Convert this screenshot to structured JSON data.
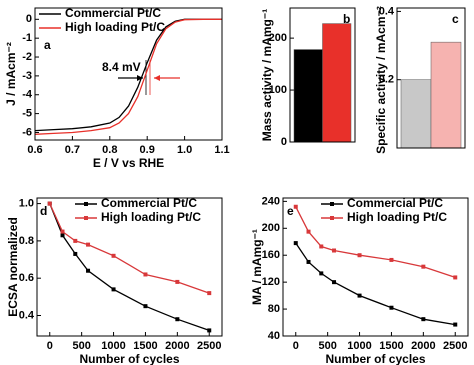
{
  "chart_data": [
    {
      "type": "line",
      "panel_label": "a",
      "annotation": "8.4 mV",
      "xlabel": "E / V vs RHE",
      "ylabel": "J / mAcm⁻²",
      "x": [
        0.6,
        0.65,
        0.7,
        0.75,
        0.8,
        0.825,
        0.85,
        0.875,
        0.9,
        0.925,
        0.95,
        0.975,
        1.0,
        1.05,
        1.1
      ],
      "series": [
        {
          "name": "Commercial Pt/C",
          "color": "#000000",
          "values": [
            -5.9,
            -5.85,
            -5.8,
            -5.7,
            -5.5,
            -5.2,
            -4.6,
            -3.6,
            -2.3,
            -1.1,
            -0.4,
            -0.1,
            0,
            0,
            0
          ]
        },
        {
          "name": "High loading Pt/C",
          "color": "#e8302a",
          "values": [
            -6.1,
            -6.05,
            -6.0,
            -5.9,
            -5.75,
            -5.5,
            -5.0,
            -4.1,
            -2.7,
            -1.3,
            -0.5,
            -0.15,
            -0.02,
            0,
            0
          ]
        }
      ],
      "xlim": [
        0.6,
        1.1
      ],
      "xticks": [
        0.6,
        0.7,
        0.8,
        0.9,
        {
          "value": 1,
          "label": "1.0"
        },
        1.1
      ],
      "ylim": [
        -6.4,
        0.6
      ],
      "yticks": [
        0,
        -1,
        -2,
        -3,
        -4,
        -5,
        -6
      ],
      "legend": "upper left",
      "marker": false
    },
    {
      "type": "bar",
      "panel_label": "b",
      "ylabel": "Mass activity / mAmg⁻¹",
      "categories": [
        null,
        null
      ],
      "values": [
        178,
        228
      ],
      "colors": [
        "#000000",
        "#e8302a"
      ],
      "ylim": [
        0,
        258
      ],
      "yticks": [
        0,
        100,
        200
      ]
    },
    {
      "type": "bar",
      "panel_label": "c",
      "ylabel": "Specific activity / mAcm⁻²",
      "categories": [
        null,
        null
      ],
      "values": [
        0.2,
        0.31
      ],
      "colors": [
        "#c8c8c8",
        "#f6b3b0"
      ],
      "ylim": [
        0,
        0.41
      ],
      "yticks": [
        0.2,
        0.4
      ]
    },
    {
      "type": "line",
      "panel_label": "d",
      "xlabel": "Number of cycles",
      "ylabel": "ECSA normalized",
      "x": [
        0,
        200,
        400,
        600,
        1000,
        1500,
        2000,
        2500
      ],
      "series": [
        {
          "name": "Commercial Pt/C",
          "color": "#000000",
          "values": [
            1.0,
            0.83,
            0.73,
            0.64,
            0.54,
            0.45,
            0.38,
            0.32
          ]
        },
        {
          "name": "High loading Pt/C",
          "color": "#d8383a",
          "values": [
            1.0,
            0.85,
            0.8,
            0.78,
            0.72,
            0.62,
            0.58,
            0.52
          ]
        }
      ],
      "xlim": [
        -200,
        2700
      ],
      "xticks": [
        0,
        500,
        1000,
        1500,
        2000,
        2500
      ],
      "ylim": [
        0.29,
        1.03
      ],
      "yticks": [
        0.4,
        0.6,
        0.8,
        {
          "value": 1,
          "label": "1.0"
        }
      ],
      "legend": "upper right",
      "marker": true
    },
    {
      "type": "line",
      "panel_label": "e",
      "xlabel": "Number of cycles",
      "ylabel": "MA / mAmg⁻¹",
      "x": [
        0,
        200,
        400,
        600,
        1000,
        1500,
        2000,
        2500
      ],
      "series": [
        {
          "name": "Commercial Pt/C",
          "color": "#000000",
          "values": [
            178,
            150,
            133,
            120,
            100,
            82,
            65,
            57
          ]
        },
        {
          "name": "High loading Pt/C",
          "color": "#d8383a",
          "values": [
            232,
            195,
            173,
            167,
            160,
            153,
            143,
            127
          ]
        }
      ],
      "xlim": [
        -200,
        2700
      ],
      "xticks": [
        0,
        500,
        1000,
        1500,
        2000,
        2500
      ],
      "ylim": [
        40,
        245
      ],
      "yticks": [
        40,
        80,
        120,
        160,
        200,
        240
      ],
      "legend": "upper right",
      "marker": true
    }
  ]
}
